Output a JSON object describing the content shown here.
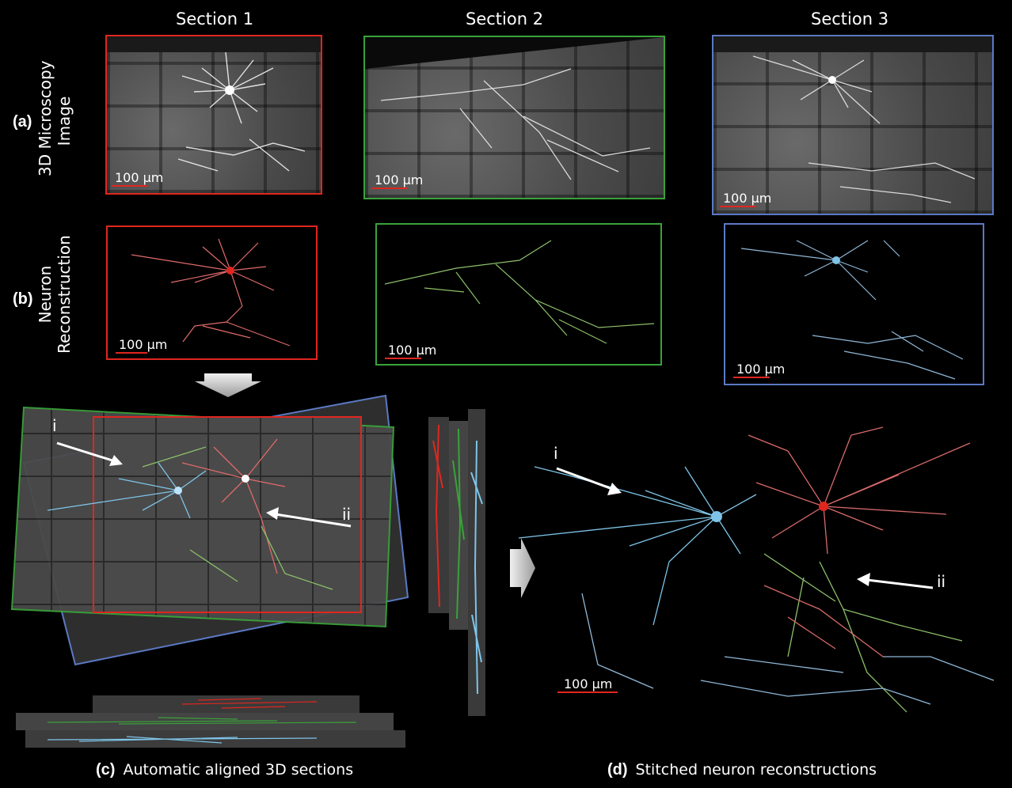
{
  "section_titles": [
    "Section 1",
    "Section 2",
    "Section 3"
  ],
  "row_a": {
    "letter": "(a)",
    "label_line1": "3D Microscopy",
    "label_line2": "Image"
  },
  "row_b": {
    "letter": "(b)",
    "label_line1": "Neuron",
    "label_line2": "Reconstruction"
  },
  "scale_label": "100 µm",
  "panel_c": {
    "letter": "(c)",
    "caption": "Automatic aligned 3D sections",
    "arrow_i": "i",
    "arrow_ii": "ii"
  },
  "panel_d": {
    "letter": "(d)",
    "caption": "Stitched neuron reconstructions",
    "arrow_i": "i",
    "arrow_ii": "ii"
  },
  "colors": {
    "section1": "#e0261f",
    "section2": "#3aa23a",
    "section3": "#5b79c4",
    "neuron1": "#e06a6a",
    "neuron2": "#8cc06a",
    "neuron3": "#7ec4e8"
  }
}
